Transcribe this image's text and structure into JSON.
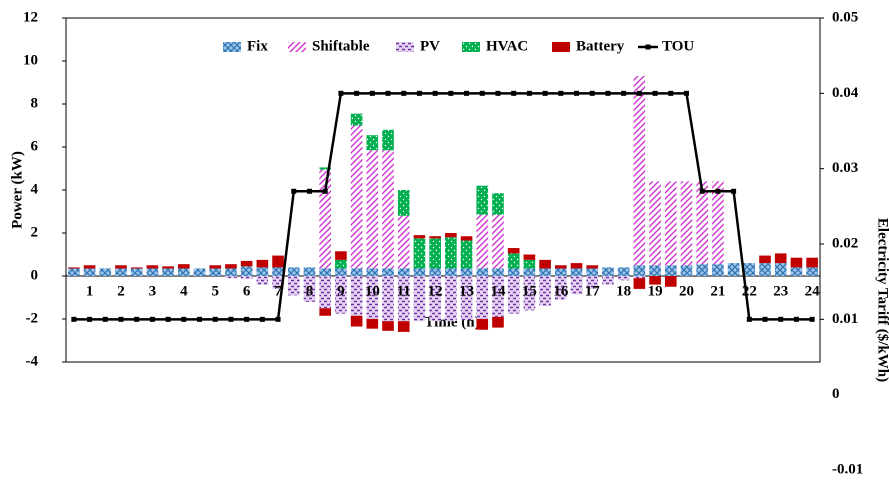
{
  "chart_data": {
    "type": "bar",
    "xlabel": "Time (h)",
    "ylabel": "Power (kW)",
    "y2label": "Electricity Tariff ($/kWh)",
    "categories": [
      null,
      "1",
      null,
      "2",
      null,
      "3",
      null,
      "4",
      null,
      "5",
      null,
      "6",
      null,
      "7",
      null,
      "8",
      null,
      "9",
      null,
      "10",
      null,
      "11",
      null,
      "12",
      null,
      "13",
      null,
      "14",
      null,
      "15",
      null,
      "16",
      null,
      "17",
      null,
      "18",
      null,
      "19",
      null,
      "20",
      null,
      "21",
      null,
      "22",
      null,
      "23",
      null,
      "24"
    ],
    "ylim": [
      -4,
      12
    ],
    "yticks": [
      -4,
      -2,
      0,
      2,
      4,
      6,
      8,
      10,
      12
    ],
    "y2lim": [
      -0.01,
      0.05
    ],
    "y2ticks": [
      -0.01,
      0,
      0.01,
      0.02,
      0.03,
      0.04,
      0.05
    ],
    "series": [
      {
        "name": "Fix",
        "color": "#2e75b6",
        "values": [
          0.35,
          0.35,
          0.35,
          0.35,
          0.35,
          0.35,
          0.35,
          0.35,
          0.35,
          0.35,
          0.35,
          0.45,
          0.4,
          0.4,
          0.4,
          0.4,
          0.35,
          0.35,
          0.35,
          0.35,
          0.35,
          0.35,
          0.35,
          0.35,
          0.35,
          0.35,
          0.35,
          0.35,
          0.35,
          0.35,
          0.35,
          0.35,
          0.35,
          0.35,
          0.4,
          0.4,
          0.5,
          0.5,
          0.5,
          0.5,
          0.55,
          0.55,
          0.6,
          0.6,
          0.6,
          0.6,
          0.4,
          0.4
        ]
      },
      {
        "name": "Shiftable",
        "color": "#cc33cc",
        "values": [
          0,
          0,
          0,
          0,
          0,
          0,
          0,
          0,
          0,
          0,
          0,
          0,
          0,
          0,
          0,
          0,
          4.6,
          0,
          6.65,
          5.5,
          5.5,
          2.45,
          0,
          0,
          0,
          0,
          2.5,
          2.5,
          0,
          0,
          0,
          0,
          0,
          0,
          0,
          0,
          8.8,
          3.9,
          3.9,
          3.9,
          3.85,
          3.85,
          0,
          0,
          0,
          0,
          0,
          0
        ]
      },
      {
        "name": "PV",
        "color": "#7030a0",
        "values": [
          0,
          0,
          0,
          0,
          0,
          0,
          0,
          0,
          0,
          0,
          -0.1,
          -0.15,
          -0.4,
          -0.6,
          -0.9,
          -1.2,
          -1.5,
          -1.75,
          -1.85,
          -2.0,
          -2.1,
          -2.1,
          -2.1,
          -2.1,
          -2.1,
          -2.05,
          -2.0,
          -1.9,
          -1.75,
          -1.6,
          -1.4,
          -1.1,
          -0.85,
          -0.6,
          -0.4,
          -0.2,
          -0.1,
          0,
          0,
          0,
          0,
          0,
          0,
          0,
          0,
          0,
          0,
          0
        ]
      },
      {
        "name": "HVAC",
        "color": "#00b050",
        "values": [
          0,
          0,
          0,
          0,
          0,
          0,
          0,
          0,
          0,
          0,
          0,
          0,
          0,
          0,
          0,
          0,
          0.1,
          0.4,
          0.55,
          0.7,
          0.95,
          1.2,
          1.4,
          1.4,
          1.45,
          1.3,
          1.35,
          1.0,
          0.7,
          0.4,
          0,
          0,
          0,
          0,
          0,
          0,
          0,
          0,
          0,
          0,
          0,
          0,
          0,
          0,
          0,
          0,
          0,
          0
        ]
      },
      {
        "name": "Battery",
        "color": "#c00000",
        "values": [
          0.05,
          0.15,
          0,
          0.15,
          0.05,
          0.15,
          0.1,
          0.2,
          0,
          0.15,
          0.2,
          0.25,
          0.35,
          0.55,
          0,
          0,
          -0.35,
          0.4,
          -0.5,
          -0.45,
          -0.45,
          -0.5,
          0.15,
          0.1,
          0.2,
          0.2,
          -0.5,
          -0.5,
          0.25,
          0.25,
          0.4,
          0.15,
          0.25,
          0.15,
          0,
          0,
          -0.5,
          -0.4,
          -0.5,
          0,
          0,
          0,
          0,
          0,
          0.35,
          0.45,
          0.45,
          0.45
        ]
      },
      {
        "name": "TOU",
        "color": "#000000",
        "type": "line",
        "axis": "y2",
        "values": [
          0.01,
          0.01,
          0.01,
          0.01,
          0.01,
          0.01,
          0.01,
          0.01,
          0.01,
          0.01,
          0.01,
          0.01,
          0.01,
          0.01,
          0.027,
          0.027,
          0.027,
          0.04,
          0.04,
          0.04,
          0.04,
          0.04,
          0.04,
          0.04,
          0.04,
          0.04,
          0.04,
          0.04,
          0.04,
          0.04,
          0.04,
          0.04,
          0.04,
          0.04,
          0.04,
          0.04,
          0.04,
          0.04,
          0.04,
          0.04,
          0.027,
          0.027,
          0.027,
          0.01,
          0.01,
          0.01,
          0.01,
          0.01
        ]
      }
    ]
  }
}
